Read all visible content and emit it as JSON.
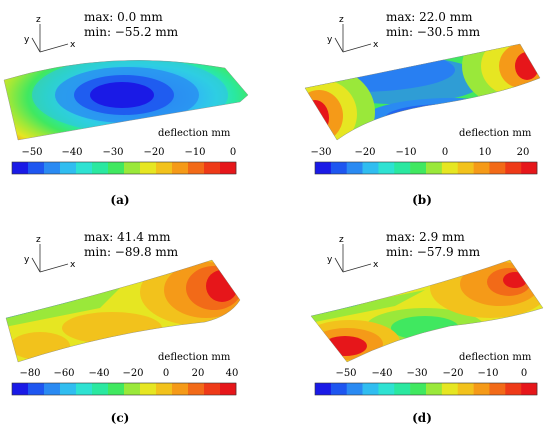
{
  "colorbar_title": "deflection mm",
  "axes_triad": {
    "z": "z",
    "y": "y",
    "x": "x"
  },
  "colormap": [
    "#1a1ae6",
    "#1e56f0",
    "#2a8af2",
    "#30bdf0",
    "#2ee2d2",
    "#2ae8a0",
    "#40e860",
    "#9ae83a",
    "#e6e622",
    "#f2c21c",
    "#f59a18",
    "#f26a18",
    "#ee3a18",
    "#e6161a"
  ],
  "panels": [
    {
      "label": "(a)",
      "max_line": "max: 0.0 mm",
      "min_line": "min: −55.2 mm",
      "max_mm": 0.0,
      "min_mm": -55.2,
      "colorbar_ticks": [
        "−50",
        "−40",
        "−30",
        "−20",
        "−10",
        "0"
      ]
    },
    {
      "label": "(b)",
      "max_line": "max: 22.0 mm",
      "min_line": "min: −30.5 mm",
      "max_mm": 22.0,
      "min_mm": -30.5,
      "colorbar_ticks": [
        "−30",
        "−20",
        "−10",
        "0",
        "10",
        "20"
      ]
    },
    {
      "label": "(c)",
      "max_line": "max: 41.4 mm",
      "min_line": "min: −89.8 mm",
      "max_mm": 41.4,
      "min_mm": -89.8,
      "colorbar_ticks": [
        "−80",
        "−60",
        "−40",
        "−20",
        "0",
        "20",
        "40"
      ]
    },
    {
      "label": "(d)",
      "max_line": "max: 2.9 mm",
      "min_line": "min: −57.9 mm",
      "max_mm": 2.9,
      "min_mm": -57.9,
      "colorbar_ticks": [
        "−50",
        "−40",
        "−30",
        "−20",
        "−10",
        "0"
      ]
    }
  ]
}
